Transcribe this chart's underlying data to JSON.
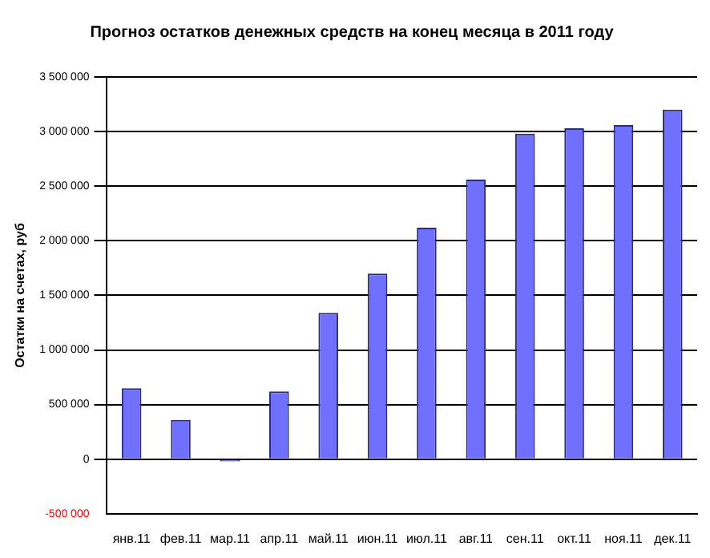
{
  "chart_data": {
    "type": "bar",
    "title": "Прогноз остатков денежных средств на конец месяца в 2011 году",
    "ylabel": "Остатки на счетах, руб",
    "categories": [
      "янв.11",
      "фев.11",
      "мар.11",
      "апр.11",
      "май.11",
      "июн.11",
      "июл.11",
      "авг.11",
      "сен.11",
      "окт.11",
      "ноя.11",
      "дек.11"
    ],
    "values": [
      650000,
      360000,
      -20000,
      620000,
      1340000,
      1700000,
      2120000,
      2560000,
      2980000,
      3030000,
      3060000,
      3200000
    ],
    "color": "#7070ff",
    "ylim": [
      -500000,
      3500000
    ],
    "yticks": [
      {
        "value": -500000,
        "label": "-500 000"
      },
      {
        "value": 0,
        "label": "0"
      },
      {
        "value": 500000,
        "label": "500 000"
      },
      {
        "value": 1000000,
        "label": "1 000 000"
      },
      {
        "value": 1500000,
        "label": "1 500 000"
      },
      {
        "value": 2000000,
        "label": "2 000 000"
      },
      {
        "value": 2500000,
        "label": "2 500 000"
      },
      {
        "value": 3000000,
        "label": "3 000 000"
      },
      {
        "value": 3500000,
        "label": "3 500 000"
      }
    ],
    "grid": "y",
    "legend": false
  }
}
